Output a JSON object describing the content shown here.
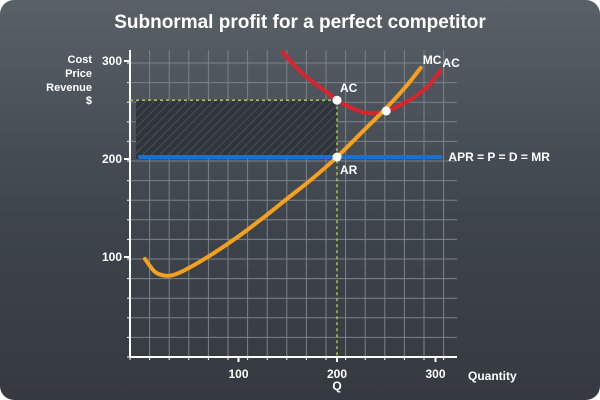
{
  "chart_data": {
    "type": "line",
    "title": "Subnormal profit for a perfect competitor",
    "ylabel_lines": [
      "Cost",
      "Price",
      "Revenue",
      "$"
    ],
    "xlabel": "Quantity",
    "x_ticks": [
      "100",
      "200",
      "300"
    ],
    "y_ticks": [
      "100",
      "200",
      "300"
    ],
    "xlim": [
      0,
      320
    ],
    "ylim": [
      0,
      310
    ],
    "grid": true,
    "q_label": "Q",
    "q_value": 200,
    "shaded_region": {
      "x": [
        0,
        200
      ],
      "y": [
        200,
        260
      ],
      "meaning": "loss"
    },
    "series": [
      {
        "name": "MC",
        "color": "#f5a01e",
        "x": [
          5,
          15,
          25,
          35,
          50,
          75,
          100,
          125,
          150,
          175,
          200,
          225,
          250,
          270,
          285
        ],
        "y": [
          98,
          85,
          81,
          82,
          89,
          104,
          121,
          140,
          160,
          180,
          202,
          227,
          252,
          274,
          293
        ]
      },
      {
        "name": "AC",
        "color": "#d9232d",
        "x": [
          145,
          160,
          175,
          190,
          200,
          215,
          230,
          250,
          270,
          290,
          305
        ],
        "y": [
          309,
          292,
          279,
          268,
          260,
          252,
          247,
          249,
          258,
          272,
          290
        ]
      },
      {
        "name": "APR = P = D = MR",
        "color": "#1b6fd1",
        "x": [
          0,
          305
        ],
        "y": [
          202,
          202
        ]
      }
    ],
    "points": [
      {
        "label": "AC",
        "x": 200,
        "y": 260
      },
      {
        "label": "AR",
        "x": 200,
        "y": 202
      },
      {
        "label": "",
        "x": 250,
        "y": 249
      }
    ]
  },
  "colors": {
    "grid": "#7c828a",
    "axis": "#ffffff",
    "guide": "#b7d84a",
    "shade": "#30353c",
    "point": "#ffffff"
  }
}
